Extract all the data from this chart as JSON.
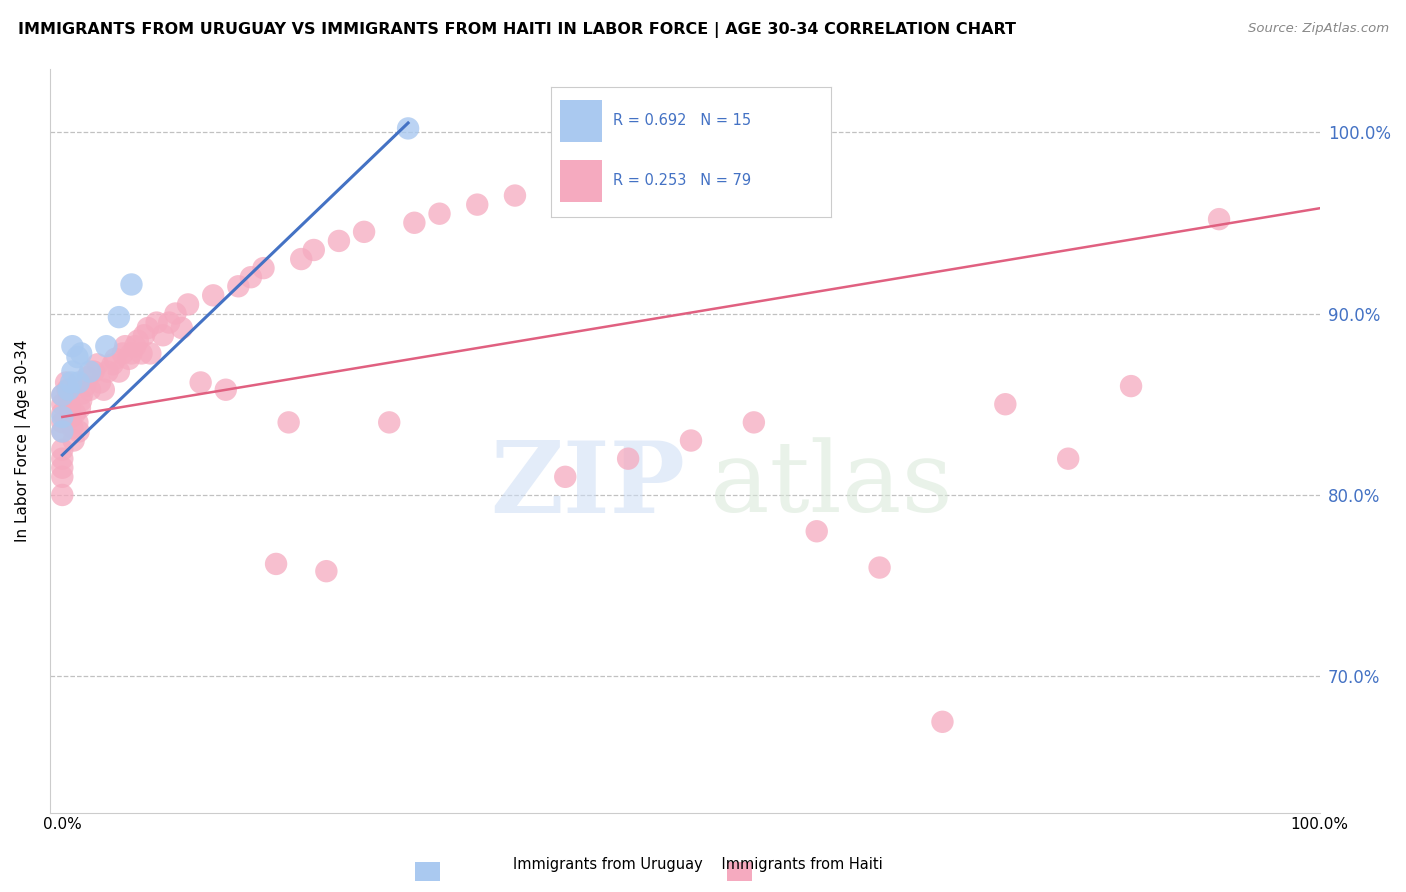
{
  "title": "IMMIGRANTS FROM URUGUAY VS IMMIGRANTS FROM HAITI IN LABOR FORCE | AGE 30-34 CORRELATION CHART",
  "source": "Source: ZipAtlas.com",
  "ylabel": "In Labor Force | Age 30-34",
  "xlim": [
    -0.01,
    1.0
  ],
  "ylim": [
    0.625,
    1.035
  ],
  "yticks": [
    0.7,
    0.8,
    0.9,
    1.0
  ],
  "ytick_labels": [
    "70.0%",
    "80.0%",
    "90.0%",
    "100.0%"
  ],
  "xticks": [
    0.0,
    1.0
  ],
  "xtick_labels": [
    "0.0%",
    "100.0%"
  ],
  "legend_r_uruguay": "R = 0.692",
  "legend_n_uruguay": "N = 15",
  "legend_r_haiti": "R = 0.253",
  "legend_n_haiti": "N = 79",
  "uruguay_color": "#aac9f0",
  "haiti_color": "#f5aabf",
  "uruguay_line_color": "#4472c4",
  "haiti_line_color": "#e06080",
  "background_color": "#ffffff",
  "grid_color": "#bbbbbb",
  "uruguay_line_x0": 0.0,
  "uruguay_line_x1": 0.275,
  "uruguay_line_y0": 0.822,
  "uruguay_line_y1": 1.005,
  "haiti_line_x0": 0.0,
  "haiti_line_x1": 1.0,
  "haiti_line_y0": 0.843,
  "haiti_line_y1": 0.958,
  "uruguay_x": [
    0.0,
    0.0,
    0.0,
    0.005,
    0.007,
    0.008,
    0.008,
    0.012,
    0.013,
    0.015,
    0.022,
    0.035,
    0.045,
    0.055,
    0.275
  ],
  "uruguay_y": [
    0.855,
    0.843,
    0.835,
    0.858,
    0.862,
    0.868,
    0.882,
    0.876,
    0.862,
    0.878,
    0.868,
    0.882,
    0.898,
    0.916,
    1.002
  ],
  "haiti_x": [
    0.0,
    0.0,
    0.0,
    0.0,
    0.0,
    0.0,
    0.0,
    0.0,
    0.0,
    0.0,
    0.003,
    0.004,
    0.005,
    0.006,
    0.007,
    0.008,
    0.009,
    0.01,
    0.012,
    0.013,
    0.014,
    0.015,
    0.016,
    0.018,
    0.02,
    0.022,
    0.025,
    0.028,
    0.03,
    0.033,
    0.036,
    0.04,
    0.042,
    0.045,
    0.048,
    0.05,
    0.053,
    0.055,
    0.058,
    0.06,
    0.063,
    0.065,
    0.068,
    0.07,
    0.075,
    0.08,
    0.085,
    0.09,
    0.095,
    0.1,
    0.11,
    0.12,
    0.13,
    0.14,
    0.15,
    0.16,
    0.17,
    0.18,
    0.19,
    0.2,
    0.21,
    0.22,
    0.24,
    0.26,
    0.28,
    0.3,
    0.33,
    0.36,
    0.4,
    0.45,
    0.5,
    0.55,
    0.6,
    0.65,
    0.7,
    0.75,
    0.8,
    0.85,
    0.92
  ],
  "haiti_y": [
    0.855,
    0.85,
    0.845,
    0.84,
    0.835,
    0.825,
    0.82,
    0.815,
    0.81,
    0.8,
    0.862,
    0.858,
    0.852,
    0.848,
    0.843,
    0.837,
    0.83,
    0.845,
    0.84,
    0.835,
    0.848,
    0.852,
    0.856,
    0.86,
    0.865,
    0.858,
    0.868,
    0.872,
    0.862,
    0.858,
    0.868,
    0.872,
    0.875,
    0.868,
    0.878,
    0.882,
    0.875,
    0.878,
    0.882,
    0.885,
    0.878,
    0.888,
    0.892,
    0.878,
    0.895,
    0.888,
    0.895,
    0.9,
    0.892,
    0.905,
    0.862,
    0.91,
    0.858,
    0.915,
    0.92,
    0.925,
    0.762,
    0.84,
    0.93,
    0.935,
    0.758,
    0.94,
    0.945,
    0.84,
    0.95,
    0.955,
    0.96,
    0.965,
    0.81,
    0.82,
    0.83,
    0.84,
    0.78,
    0.76,
    0.675,
    0.85,
    0.82,
    0.86,
    0.952
  ]
}
